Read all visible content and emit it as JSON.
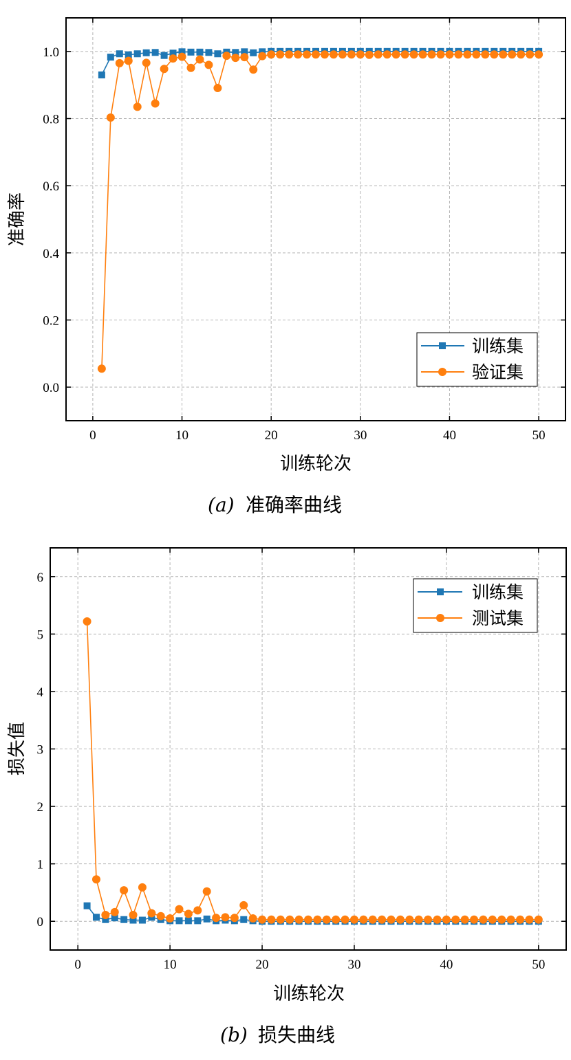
{
  "colors": {
    "train": "#1f77b4",
    "val": "#ff7f0e"
  },
  "chart_data": [
    {
      "type": "line",
      "caption_letter": "a",
      "caption_text": "准确率曲线",
      "xlabel": "训练轮次",
      "ylabel": "准确率",
      "xlim": [
        -3,
        53
      ],
      "ylim": [
        -0.1,
        1.1
      ],
      "xticks": [
        0,
        10,
        20,
        30,
        40,
        50
      ],
      "yticks": [
        0.0,
        0.2,
        0.4,
        0.6,
        0.8,
        1.0
      ],
      "ytick_decimals": 1,
      "grid": true,
      "legend_position": "lower-right",
      "series": [
        {
          "name": "训练集",
          "marker": "square",
          "color_key": "train",
          "x": [
            1,
            2,
            3,
            4,
            5,
            6,
            7,
            8,
            9,
            10,
            11,
            12,
            13,
            14,
            15,
            16,
            17,
            18,
            19,
            20,
            21,
            22,
            23,
            24,
            25,
            26,
            27,
            28,
            29,
            30,
            31,
            32,
            33,
            34,
            35,
            36,
            37,
            38,
            39,
            40,
            41,
            42,
            43,
            44,
            45,
            46,
            47,
            48,
            49,
            50
          ],
          "values": [
            0.93,
            0.983,
            0.993,
            0.99,
            0.993,
            0.996,
            0.997,
            0.988,
            0.995,
            0.999,
            0.998,
            0.998,
            0.997,
            0.993,
            0.998,
            0.997,
            0.999,
            0.996,
            0.999,
            1.0,
            1.0,
            1.0,
            1.0,
            1.0,
            1.0,
            1.0,
            1.0,
            1.0,
            1.0,
            1.0,
            1.0,
            1.0,
            1.0,
            1.0,
            1.0,
            1.0,
            1.0,
            1.0,
            1.0,
            1.0,
            1.0,
            1.0,
            1.0,
            1.0,
            1.0,
            1.0,
            1.0,
            1.0,
            1.0,
            1.0
          ]
        },
        {
          "name": "验证集",
          "marker": "circle",
          "color_key": "val",
          "x": [
            1,
            2,
            3,
            4,
            5,
            6,
            7,
            8,
            9,
            10,
            11,
            12,
            13,
            14,
            15,
            16,
            17,
            18,
            19,
            20,
            21,
            22,
            23,
            24,
            25,
            26,
            27,
            28,
            29,
            30,
            31,
            32,
            33,
            34,
            35,
            36,
            37,
            38,
            39,
            40,
            41,
            42,
            43,
            44,
            45,
            46,
            47,
            48,
            49,
            50
          ],
          "values": [
            0.055,
            0.803,
            0.965,
            0.972,
            0.835,
            0.966,
            0.845,
            0.948,
            0.979,
            0.984,
            0.951,
            0.976,
            0.96,
            0.891,
            0.987,
            0.981,
            0.983,
            0.946,
            0.986,
            0.991,
            0.991,
            0.991,
            0.991,
            0.991,
            0.991,
            0.991,
            0.991,
            0.991,
            0.991,
            0.991,
            0.99,
            0.991,
            0.991,
            0.991,
            0.991,
            0.991,
            0.991,
            0.991,
            0.991,
            0.991,
            0.991,
            0.991,
            0.991,
            0.991,
            0.991,
            0.991,
            0.991,
            0.991,
            0.991,
            0.991
          ]
        }
      ]
    },
    {
      "type": "line",
      "caption_letter": "b",
      "caption_text": "损失曲线",
      "xlabel": "训练轮次",
      "ylabel": "损失值",
      "xlim": [
        -3,
        53
      ],
      "ylim": [
        -0.5,
        6.5
      ],
      "xticks": [
        0,
        10,
        20,
        30,
        40,
        50
      ],
      "yticks": [
        0,
        1,
        2,
        3,
        4,
        5,
        6
      ],
      "ytick_decimals": 0,
      "grid": true,
      "legend_position": "upper-right",
      "series": [
        {
          "name": "训练集",
          "marker": "square",
          "color_key": "train",
          "x": [
            1,
            2,
            3,
            4,
            5,
            6,
            7,
            8,
            9,
            10,
            11,
            12,
            13,
            14,
            15,
            16,
            17,
            18,
            19,
            20,
            21,
            22,
            23,
            24,
            25,
            26,
            27,
            28,
            29,
            30,
            31,
            32,
            33,
            34,
            35,
            36,
            37,
            38,
            39,
            40,
            41,
            42,
            43,
            44,
            45,
            46,
            47,
            48,
            49,
            50
          ],
          "values": [
            0.27,
            0.07,
            0.03,
            0.06,
            0.03,
            0.02,
            0.02,
            0.07,
            0.03,
            0.01,
            0.01,
            0.01,
            0.01,
            0.04,
            0.01,
            0.02,
            0.01,
            0.03,
            0.01,
            0.0,
            0.0,
            0.0,
            0.0,
            0.0,
            0.0,
            0.0,
            0.0,
            0.0,
            0.0,
            0.0,
            0.0,
            0.0,
            0.0,
            0.0,
            0.0,
            0.0,
            0.0,
            0.0,
            0.0,
            0.0,
            0.0,
            0.0,
            0.0,
            0.0,
            0.0,
            0.0,
            0.0,
            0.0,
            0.0,
            0.0
          ]
        },
        {
          "name": "测试集",
          "marker": "circle",
          "color_key": "val",
          "x": [
            1,
            2,
            3,
            4,
            5,
            6,
            7,
            8,
            9,
            10,
            11,
            12,
            13,
            14,
            15,
            16,
            17,
            18,
            19,
            20,
            21,
            22,
            23,
            24,
            25,
            26,
            27,
            28,
            29,
            30,
            31,
            32,
            33,
            34,
            35,
            36,
            37,
            38,
            39,
            40,
            41,
            42,
            43,
            44,
            45,
            46,
            47,
            48,
            49,
            50
          ],
          "values": [
            5.22,
            0.73,
            0.11,
            0.16,
            0.54,
            0.11,
            0.59,
            0.14,
            0.09,
            0.05,
            0.21,
            0.13,
            0.19,
            0.52,
            0.06,
            0.07,
            0.06,
            0.28,
            0.05,
            0.03,
            0.03,
            0.03,
            0.03,
            0.03,
            0.03,
            0.03,
            0.03,
            0.03,
            0.03,
            0.03,
            0.03,
            0.03,
            0.03,
            0.03,
            0.03,
            0.03,
            0.03,
            0.03,
            0.03,
            0.03,
            0.03,
            0.03,
            0.03,
            0.03,
            0.03,
            0.03,
            0.03,
            0.03,
            0.03,
            0.03
          ]
        }
      ]
    }
  ]
}
